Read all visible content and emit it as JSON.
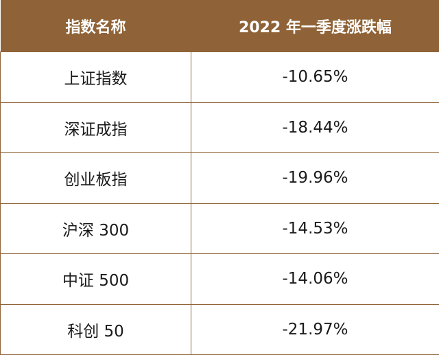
{
  "table": {
    "headers": [
      "指数名称",
      "2022 年一季度涨跌幅"
    ],
    "rows": [
      {
        "name": "上证指数",
        "change": "-10.65%"
      },
      {
        "name": "深证成指",
        "change": "-18.44%"
      },
      {
        "name": "创业板指",
        "change": "-19.96%"
      },
      {
        "name": "沪深 300",
        "change": "-14.53%"
      },
      {
        "name": "中证 500",
        "change": "-14.06%"
      },
      {
        "name": "科创 50",
        "change": "-21.97%"
      }
    ]
  },
  "colors": {
    "header_bg": "#8f6337",
    "header_text": "#ffffff",
    "border": "#8f6337",
    "cell_text": "#1a1a1a"
  }
}
